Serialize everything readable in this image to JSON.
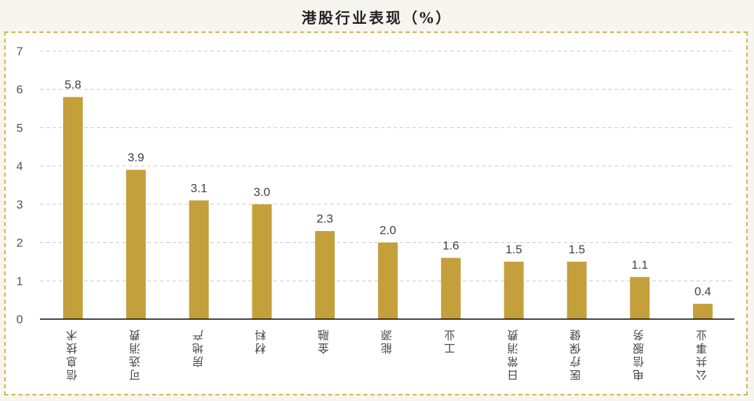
{
  "header": {
    "title": "港股行业表现（%）"
  },
  "colors": {
    "bar": "#c4a03c",
    "grid": "#c8c8c8",
    "axis": "#000000",
    "frame": "#cdb550",
    "background": "#f7f5ef"
  },
  "chart_data": {
    "type": "bar",
    "title": "港股行业表现（%）",
    "xlabel": "",
    "ylabel": "",
    "ylim": [
      0,
      7
    ],
    "yticks": [
      "0",
      "1",
      "2",
      "3",
      "4",
      "5",
      "6",
      "7"
    ],
    "grid": true,
    "legend": null,
    "categories": [
      "信息技术",
      "可选消费",
      "房地产",
      "材料",
      "金融",
      "能源",
      "工业",
      "日常消费",
      "医疗保健",
      "电信服务",
      "公共事业"
    ],
    "values": [
      5.8,
      3.9,
      3.1,
      3.0,
      2.3,
      2.0,
      1.6,
      1.5,
      1.5,
      1.1,
      0.4
    ],
    "data_labels": [
      "5.8",
      "3.9",
      "3.1",
      "3.0",
      "2.3",
      "2.0",
      "1.6",
      "1.5",
      "1.5",
      "1.1",
      "0.4"
    ]
  }
}
